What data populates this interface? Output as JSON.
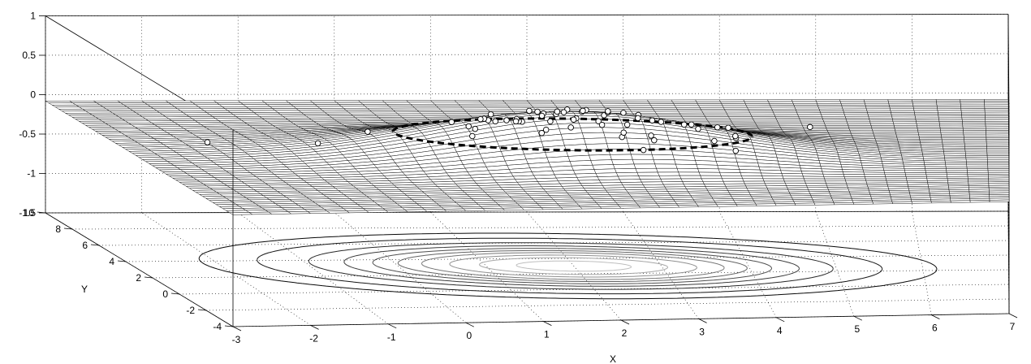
{
  "chart_data": {
    "type": "surface",
    "title": "",
    "xlabel": "X",
    "ylabel": "Y",
    "zlabel": "",
    "xlim": [
      -3,
      7
    ],
    "ylim": [
      -4,
      10
    ],
    "zlim": [
      -1.5,
      1
    ],
    "x_ticks": [
      "-3",
      "-2",
      "-1",
      "0",
      "1",
      "2",
      "3",
      "4",
      "5",
      "6",
      "7"
    ],
    "y_ticks": [
      "-4",
      "-2",
      "0",
      "2",
      "4",
      "6",
      "8",
      "10"
    ],
    "z_ticks": [
      "-1.5",
      "-1",
      "-0.5",
      "0",
      "0.5",
      "1"
    ],
    "grid": true,
    "surface": {
      "function": "bivariate gaussian bump",
      "base_level": -0.08,
      "peak_height": 0.52,
      "center_x": 2,
      "center_y": 3,
      "sigma_u": 1.5,
      "sigma_v": 1.8,
      "rotation_deg": 40,
      "mesh_color": "#000000",
      "face_color": "#ffffff"
    },
    "contours": {
      "plane_z": -1.5,
      "levels": [
        0.02,
        0.05,
        0.1,
        0.15,
        0.2,
        0.25,
        0.3,
        0.36,
        0.42,
        0.48
      ]
    },
    "ellipse": {
      "style": "dashed",
      "color": "#000000",
      "level": 0.24
    },
    "scatter": {
      "marker": "circle",
      "color": "#000000",
      "count": 60
    }
  }
}
